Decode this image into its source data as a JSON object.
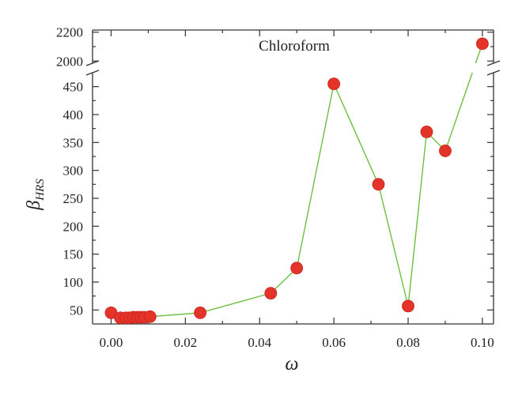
{
  "chart_data": {
    "type": "line",
    "title": "",
    "xlabel": "ω",
    "ylabel": "β",
    "ylabel_subscript": "HRS",
    "annotation": "Chloroform",
    "x": [
      0.0,
      0.0025,
      0.004,
      0.005,
      0.006,
      0.007,
      0.008,
      0.009,
      0.0105,
      0.024,
      0.043,
      0.05,
      0.06,
      0.072,
      0.08,
      0.085,
      0.09,
      0.1
    ],
    "y": [
      45,
      36,
      36,
      36,
      37,
      37,
      37,
      37,
      38,
      45,
      80,
      125,
      455,
      275,
      57,
      369,
      335,
      2120
    ],
    "xlim": [
      -0.005,
      0.103
    ],
    "ylim_lower": [
      25,
      475
    ],
    "ylim_upper": [
      1985,
      2215
    ],
    "axis_break": "y between 475 and 1985",
    "xticks": [
      "0.00",
      "0.02",
      "0.04",
      "0.06",
      "0.08",
      "0.10"
    ],
    "yticks_lower": [
      "50",
      "100",
      "150",
      "200",
      "250",
      "300",
      "350",
      "400",
      "450"
    ],
    "yticks_upper": [
      "2000",
      "2200"
    ],
    "line_color": "#6dbf3f",
    "marker_color": "#e4342a",
    "grid": false,
    "legend": "none"
  }
}
